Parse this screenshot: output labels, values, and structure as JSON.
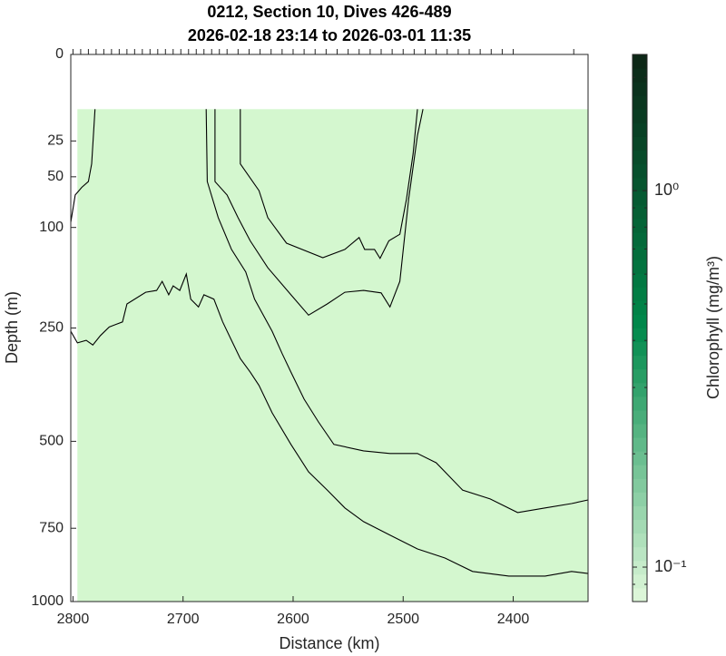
{
  "chart_data": {
    "type": "contour",
    "title": [
      "0212, Section 10, Dives 426-489",
      "2026-02-18 23:14 to 2026-03-01 11:35"
    ],
    "xlabel": "Distance (km)",
    "ylabel": "Depth (m)",
    "xlim": [
      2802,
      2332
    ],
    "ylim": [
      0,
      1000
    ],
    "yscale": "sqrt",
    "xticks": [
      2800,
      2700,
      2600,
      2500,
      2400
    ],
    "yticks": [
      0,
      25,
      50,
      100,
      250,
      500,
      750,
      1000
    ],
    "top_ticks": [
      2800,
      2793,
      2786,
      2779,
      2772,
      2765,
      2758,
      2751,
      2744,
      2737,
      2730,
      2723,
      2716,
      2709,
      2702,
      2695,
      2688,
      2681,
      2674,
      2667,
      2660,
      2650,
      2640,
      2630,
      2620,
      2610,
      2600,
      2590,
      2580,
      2570,
      2560,
      2550,
      2540,
      2530,
      2520,
      2510,
      2500,
      2490,
      2480,
      2470,
      2460,
      2450,
      2440,
      2430,
      2420,
      2410,
      2400,
      2345
    ],
    "coverage": {
      "x": [
        2796,
        2332
      ],
      "y": [
        10,
        1000
      ]
    },
    "fill_color": "#d4f7cf",
    "contour_color": "#000000",
    "contours": [
      {
        "x": [
          2780,
          2783,
          2786,
          2792,
          2798,
          2802
        ],
        "y": [
          10,
          40,
          54,
          59,
          66,
          94
        ]
      },
      {
        "x": [
          2802,
          2796,
          2788,
          2782,
          2775,
          2767,
          2755,
          2751,
          2734,
          2724,
          2719,
          2713,
          2709,
          2703,
          2697,
          2693,
          2686,
          2681,
          2672,
          2664,
          2656,
          2648,
          2639,
          2631,
          2619,
          2602,
          2586,
          2569,
          2553,
          2536,
          2512,
          2487,
          2462,
          2437,
          2404,
          2371,
          2347,
          2332
        ],
        "y": [
          256,
          278,
          273,
          282,
          264,
          248,
          239,
          208,
          189,
          186,
          172,
          193,
          179,
          186,
          161,
          200,
          213,
          193,
          200,
          239,
          273,
          309,
          337,
          366,
          429,
          508,
          582,
          634,
          687,
          729,
          772,
          817,
          847,
          893,
          909,
          909,
          893,
          900
        ]
      },
      {
        "x": [
          2679,
          2678,
          2668,
          2656,
          2643,
          2635,
          2619,
          2610,
          2602,
          2590,
          2577,
          2563,
          2536,
          2512,
          2487,
          2470,
          2446,
          2421,
          2396,
          2371,
          2347,
          2332
        ],
        "y": [
          10,
          54,
          89,
          127,
          158,
          200,
          256,
          299,
          337,
          397,
          451,
          508,
          525,
          532,
          532,
          557,
          634,
          660,
          701,
          687,
          674,
          663
        ]
      },
      {
        "x": [
          2671,
          2671,
          2660,
          2650,
          2639,
          2623,
          2602,
          2586,
          2569,
          2553,
          2536,
          2520,
          2512,
          2503,
          2495,
          2487,
          2482
        ],
        "y": [
          10,
          54,
          66,
          89,
          116,
          152,
          193,
          227,
          208,
          189,
          186,
          190,
          213,
          172,
          70,
          22,
          10
        ]
      },
      {
        "x": [
          2648,
          2648,
          2631,
          2623,
          2606,
          2573,
          2553,
          2540,
          2535,
          2526,
          2521,
          2513,
          2503,
          2497,
          2491,
          2487
        ],
        "y": [
          10,
          40,
          62,
          89,
          119,
          138,
          127,
          112,
          127,
          127,
          139,
          116,
          108,
          70,
          33,
          10
        ]
      }
    ],
    "colorbar": {
      "label": "Chlorophyll (mg/m³)",
      "clim": [
        0.081,
        2.3
      ],
      "scale": "log",
      "ticks": [
        {
          "value": 1,
          "label": "10⁰"
        },
        {
          "value": 0.1,
          "label": "10⁻¹"
        }
      ],
      "minor_ticks": [
        0.09,
        0.2,
        0.3,
        0.4,
        0.5,
        0.6,
        0.7,
        0.8,
        0.9,
        2
      ],
      "colormap": [
        "#e2f9dc",
        "#00894b",
        "#0d2616"
      ],
      "levels": 40
    }
  }
}
